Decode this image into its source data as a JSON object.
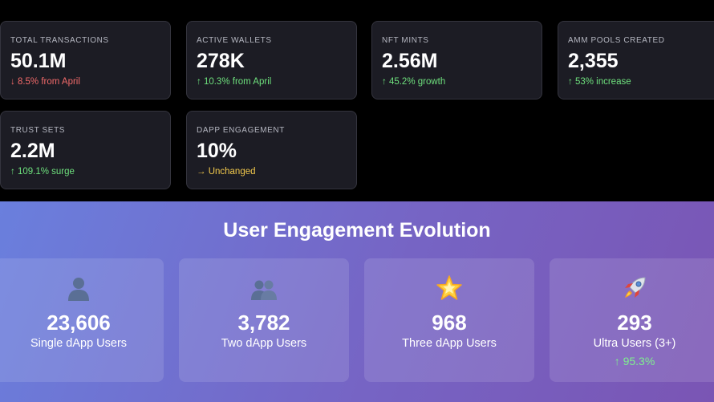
{
  "stats": [
    {
      "label": "TOTAL TRANSACTIONS",
      "value": "50.1M",
      "change": "↓ 8.5% from April",
      "trend": "down",
      "color": "#f26a6a"
    },
    {
      "label": "ACTIVE WALLETS",
      "value": "278K",
      "change": "↑ 10.3% from April",
      "trend": "up",
      "color": "#6ee07d"
    },
    {
      "label": "NFT MINTS",
      "value": "2.56M",
      "change": "↑ 45.2% growth",
      "trend": "up",
      "color": "#6ee07d"
    },
    {
      "label": "AMM POOLS CREATED",
      "value": "2,355",
      "change": "↑ 53% increase",
      "trend": "up",
      "color": "#6ee07d"
    },
    {
      "label": "TRUST SETS",
      "value": "2.2M",
      "change": "↑ 109.1% surge",
      "trend": "up",
      "color": "#6ee07d"
    },
    {
      "label": "DAPP ENGAGEMENT",
      "value": "10%",
      "change": "→ Unchanged",
      "trend": "flat",
      "color": "#f2c94c"
    }
  ],
  "engagement": {
    "title": "User Engagement Evolution",
    "cards": [
      {
        "icon": "single-user-icon",
        "count": "23,606",
        "label": "Single dApp Users",
        "change": ""
      },
      {
        "icon": "two-users-icon",
        "count": "3,782",
        "label": "Two dApp Users",
        "change": ""
      },
      {
        "icon": "star-icon",
        "count": "968",
        "label": "Three dApp Users",
        "change": ""
      },
      {
        "icon": "rocket-icon",
        "count": "293",
        "label": "Ultra Users (3+)",
        "change": "↑ 95.3%"
      }
    ]
  }
}
